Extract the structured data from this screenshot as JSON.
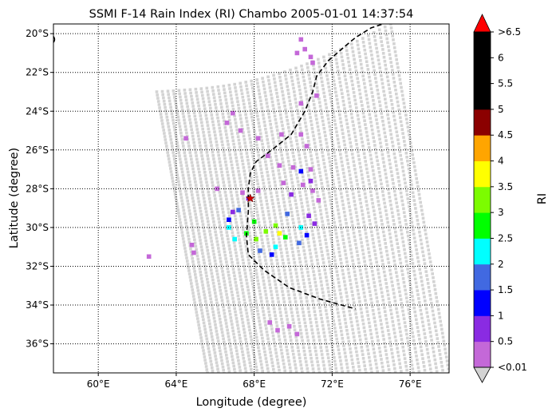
{
  "chart_data": {
    "type": "heatmap",
    "title": "SSMI F-14 Rain Index (RI) Chambo 2005-01-01 14:37:54",
    "xlabel": "Longitude (degree)",
    "ylabel": "Latitude (degree)",
    "xlim": [
      57.7,
      78.0
    ],
    "ylim": [
      -37.5,
      -19.5
    ],
    "x_ticks": [
      {
        "value": 60,
        "label": "60°E"
      },
      {
        "value": 64,
        "label": "64°E"
      },
      {
        "value": 68,
        "label": "68°E"
      },
      {
        "value": 72,
        "label": "72°E"
      },
      {
        "value": 76,
        "label": "76°E"
      }
    ],
    "y_ticks": [
      {
        "value": -20,
        "label": "20°S"
      },
      {
        "value": -22,
        "label": "22°S"
      },
      {
        "value": -24,
        "label": "24°S"
      },
      {
        "value": -26,
        "label": "26°S"
      },
      {
        "value": -28,
        "label": "28°S"
      },
      {
        "value": -30,
        "label": "30°S"
      },
      {
        "value": -32,
        "label": "32°S"
      },
      {
        "value": -34,
        "label": "34°S"
      },
      {
        "value": -36,
        "label": "36°S"
      }
    ],
    "grid": "dotted",
    "colorbar": {
      "label": "RI",
      "colors": [
        "#c468d8",
        "#8a2be2",
        "#0000ff",
        "#4169e1",
        "#00ffff",
        "#00ff00",
        "#7cfc00",
        "#ffff00",
        "#ffa500",
        "#8b0000",
        "#000000",
        "#000000",
        "#000000"
      ],
      "under_color": "#d3d3d3",
      "over_color": "#ff0000",
      "tick_labels": [
        "<0.01",
        "0.5",
        "1",
        "1.5",
        "2",
        "2.5",
        "3",
        "3.5",
        "4",
        "4.5",
        "5",
        "5.5",
        "6",
        ">6.5"
      ]
    },
    "swath_corners": {
      "top_left": [
        63.0,
        -23.0
      ],
      "top_right": [
        75.0,
        -19.5
      ],
      "bottom_right": [
        78.0,
        -37.5
      ],
      "bottom_left": [
        65.6,
        -37.5
      ]
    },
    "rain_cells": [
      {
        "lon": 70.4,
        "lat": -20.3,
        "ri": 0.3
      },
      {
        "lon": 70.6,
        "lat": -20.8,
        "ri": 0.3
      },
      {
        "lon": 70.9,
        "lat": -21.2,
        "ri": 0.3
      },
      {
        "lon": 71.0,
        "lat": -21.5,
        "ri": 0.3
      },
      {
        "lon": 70.2,
        "lat": -21.0,
        "ri": 0.3
      },
      {
        "lon": 71.2,
        "lat": -23.2,
        "ri": 0.3
      },
      {
        "lon": 70.4,
        "lat": -23.6,
        "ri": 0.3
      },
      {
        "lon": 66.9,
        "lat": -24.1,
        "ri": 0.3
      },
      {
        "lon": 66.6,
        "lat": -24.6,
        "ri": 0.3
      },
      {
        "lon": 67.3,
        "lat": -25.0,
        "ri": 0.3
      },
      {
        "lon": 69.4,
        "lat": -25.2,
        "ri": 0.3
      },
      {
        "lon": 68.2,
        "lat": -25.4,
        "ri": 0.3
      },
      {
        "lon": 70.4,
        "lat": -25.2,
        "ri": 0.3
      },
      {
        "lon": 70.7,
        "lat": -25.8,
        "ri": 0.3
      },
      {
        "lon": 64.5,
        "lat": -25.4,
        "ri": 0.3
      },
      {
        "lon": 68.7,
        "lat": -26.3,
        "ri": 0.3
      },
      {
        "lon": 69.3,
        "lat": -26.8,
        "ri": 0.3
      },
      {
        "lon": 70.0,
        "lat": -26.9,
        "ri": 0.3
      },
      {
        "lon": 70.9,
        "lat": -27.0,
        "ri": 0.3
      },
      {
        "lon": 69.5,
        "lat": -27.7,
        "ri": 0.3
      },
      {
        "lon": 70.5,
        "lat": -27.8,
        "ri": 0.3
      },
      {
        "lon": 71.0,
        "lat": -28.1,
        "ri": 0.3
      },
      {
        "lon": 71.3,
        "lat": -28.6,
        "ri": 0.3
      },
      {
        "lon": 66.1,
        "lat": -28.0,
        "ri": 0.3
      },
      {
        "lon": 67.4,
        "lat": -28.2,
        "ri": 0.3
      },
      {
        "lon": 68.2,
        "lat": -28.1,
        "ri": 0.3
      },
      {
        "lon": 64.8,
        "lat": -30.9,
        "ri": 0.3
      },
      {
        "lon": 64.9,
        "lat": -31.3,
        "ri": 0.3
      },
      {
        "lon": 62.6,
        "lat": -31.5,
        "ri": 0.3
      },
      {
        "lon": 68.8,
        "lat": -34.9,
        "ri": 0.3
      },
      {
        "lon": 69.2,
        "lat": -35.3,
        "ri": 0.3
      },
      {
        "lon": 69.8,
        "lat": -35.1,
        "ri": 0.3
      },
      {
        "lon": 70.2,
        "lat": -35.5,
        "ri": 0.3
      },
      {
        "lon": 69.9,
        "lat": -28.3,
        "ri": 0.8
      },
      {
        "lon": 70.9,
        "lat": -27.6,
        "ri": 0.8
      },
      {
        "lon": 67.7,
        "lat": -28.5,
        "ri": 0.8
      },
      {
        "lon": 70.8,
        "lat": -29.4,
        "ri": 0.8
      },
      {
        "lon": 66.9,
        "lat": -29.2,
        "ri": 0.8
      },
      {
        "lon": 71.1,
        "lat": -29.8,
        "ri": 0.8
      },
      {
        "lon": 70.4,
        "lat": -27.1,
        "ri": 1.2
      },
      {
        "lon": 66.7,
        "lat": -29.6,
        "ri": 1.2
      },
      {
        "lon": 70.7,
        "lat": -30.4,
        "ri": 1.2
      },
      {
        "lon": 68.9,
        "lat": -31.4,
        "ri": 1.2
      },
      {
        "lon": 67.2,
        "lat": -29.1,
        "ri": 1.7
      },
      {
        "lon": 69.7,
        "lat": -29.3,
        "ri": 1.7
      },
      {
        "lon": 70.3,
        "lat": -30.8,
        "ri": 1.7
      },
      {
        "lon": 68.3,
        "lat": -31.2,
        "ri": 1.7
      },
      {
        "lon": 66.7,
        "lat": -30.0,
        "ri": 2.2
      },
      {
        "lon": 67.0,
        "lat": -30.6,
        "ri": 2.2
      },
      {
        "lon": 69.1,
        "lat": -31.0,
        "ri": 2.2
      },
      {
        "lon": 70.4,
        "lat": -30.0,
        "ri": 2.2
      },
      {
        "lon": 67.6,
        "lat": -30.3,
        "ri": 2.7
      },
      {
        "lon": 68.0,
        "lat": -29.7,
        "ri": 2.7
      },
      {
        "lon": 69.6,
        "lat": -30.5,
        "ri": 2.7
      },
      {
        "lon": 68.6,
        "lat": -30.2,
        "ri": 3.2
      },
      {
        "lon": 68.1,
        "lat": -30.6,
        "ri": 3.2
      },
      {
        "lon": 69.1,
        "lat": -29.9,
        "ri": 3.2
      },
      {
        "lon": 69.3,
        "lat": -30.3,
        "ri": 3.7
      }
    ],
    "storm_track": [
      [
        74.9,
        -19.4
      ],
      [
        74.0,
        -19.7
      ],
      [
        73.2,
        -20.2
      ],
      [
        72.6,
        -20.7
      ],
      [
        71.8,
        -21.4
      ],
      [
        71.2,
        -22.2
      ],
      [
        71.0,
        -23.0
      ],
      [
        70.6,
        -24.0
      ],
      [
        69.9,
        -25.2
      ],
      [
        68.9,
        -26.0
      ],
      [
        68.1,
        -26.6
      ],
      [
        67.8,
        -27.2
      ],
      [
        67.7,
        -28.0
      ],
      [
        67.7,
        -29.2
      ],
      [
        67.6,
        -30.4
      ],
      [
        67.7,
        -31.4
      ],
      [
        68.5,
        -32.2
      ],
      [
        69.8,
        -33.1
      ],
      [
        71.4,
        -33.7
      ],
      [
        73.2,
        -34.2
      ]
    ],
    "storm_center": {
      "lon": 67.8,
      "lat": -28.5
    },
    "coast_point": {
      "lon": 57.7,
      "lat": -20.3
    }
  }
}
